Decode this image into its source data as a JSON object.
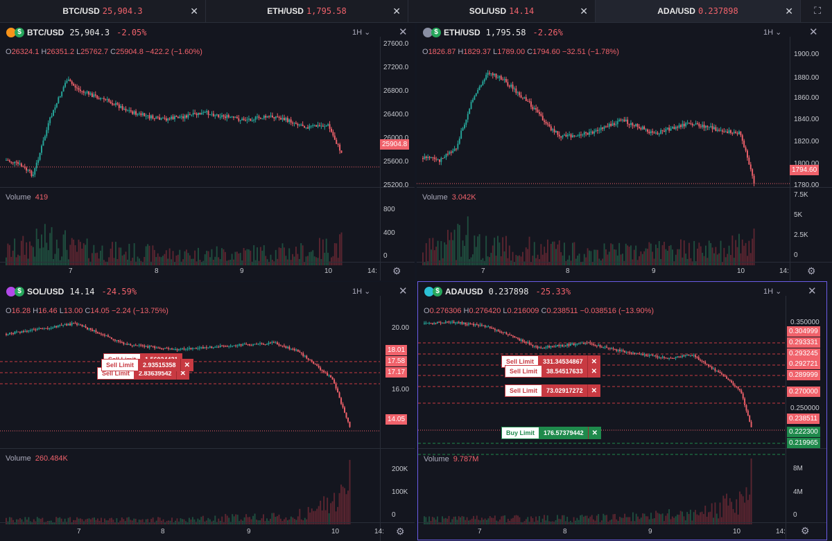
{
  "tabs": [
    {
      "symbol": "BTC/USD",
      "price": "25,904.3"
    },
    {
      "symbol": "ETH/USD",
      "price": "1,795.58"
    },
    {
      "symbol": "SOL/USD",
      "price": "14.14"
    },
    {
      "symbol": "ADA/USD",
      "price": "0.237898"
    }
  ],
  "colors": {
    "up": "#26a69a",
    "down": "#f0626b",
    "bg": "#131722",
    "selected_border": "#6c5ce7"
  },
  "panels": [
    {
      "symbol": "BTC/USD",
      "price": "25,904.3",
      "change": "-2.05%",
      "timeframe": "1H",
      "ohlc": {
        "o": "26324.1",
        "h": "26351.2",
        "l": "25762.7",
        "c": "25904.8",
        "chg": "−422.2 (−1.60%)"
      },
      "price_axis": [
        "27600.0",
        "27200.0",
        "26800.0",
        "26400.0",
        "26000.0",
        "25600.0",
        "25200.0"
      ],
      "last_price": "25904.8",
      "volume_label": "Volume",
      "volume_value": "419",
      "volume_axis": [
        "800",
        "400",
        "0"
      ],
      "time_axis": [
        "7",
        "8",
        "9",
        "10",
        "14:"
      ],
      "orders": []
    },
    {
      "symbol": "ETH/USD",
      "price": "1,795.58",
      "change": "-2.26%",
      "timeframe": "1H",
      "ohlc": {
        "o": "1826.87",
        "h": "1829.37",
        "l": "1789.00",
        "c": "1794.60",
        "chg": "−32.51 (−1.78%)"
      },
      "price_axis": [
        "1900.00",
        "1880.00",
        "1860.00",
        "1840.00",
        "1820.00",
        "1800.00",
        "1780.00"
      ],
      "last_price": "1794.60",
      "volume_label": "Volume",
      "volume_value": "3.042K",
      "volume_axis": [
        "7.5K",
        "5K",
        "2.5K",
        "0"
      ],
      "time_axis": [
        "7",
        "8",
        "9",
        "10",
        "14:"
      ],
      "orders": []
    },
    {
      "symbol": "SOL/USD",
      "price": "14.14",
      "change": "-24.59%",
      "timeframe": "1H",
      "ohlc": {
        "o": "16.28",
        "h": "16.46",
        "l": "13.00",
        "c": "14.05",
        "chg": "−2.24 (−13.75%)"
      },
      "price_axis": [
        "20.00",
        "16.00"
      ],
      "price_tags": [
        "18.01",
        "17.58",
        "17.17"
      ],
      "last_price": "14.05",
      "volume_label": "Volume",
      "volume_value": "260.484K",
      "volume_axis": [
        "200K",
        "100K",
        "0"
      ],
      "time_axis": [
        "7",
        "8",
        "9",
        "10",
        "14:"
      ],
      "orders": [
        {
          "type": "Sell Limit",
          "qty": "1.56024431"
        },
        {
          "type": "Sell Limit",
          "qty": "2.93515358"
        },
        {
          "type": "Sell Limit",
          "qty": "2.83639542"
        }
      ]
    },
    {
      "symbol": "ADA/USD",
      "price": "0.237898",
      "change": "-25.33%",
      "timeframe": "1H",
      "ohlc": {
        "o": "0.276306",
        "h": "0.276420",
        "l": "0.216009",
        "c": "0.238511",
        "chg": "−0.038516 (−13.90%)"
      },
      "price_axis": [
        "0.350000",
        "0.250000"
      ],
      "price_tags": [
        "0.304999",
        "0.293331",
        "0.293245",
        "0.292721",
        "0.289999",
        "0.270000"
      ],
      "buy_tags": [
        "0.222300",
        "0.219965"
      ],
      "last_price": "0.238511",
      "volume_label": "Volume",
      "volume_value": "9.787M",
      "volume_axis": [
        "8M",
        "4M",
        "0"
      ],
      "time_axis": [
        "7",
        "8",
        "9",
        "10",
        "14:"
      ],
      "orders": [
        {
          "type": "Sell Limit",
          "qty": "331.34534867"
        },
        {
          "type": "Sell Limit",
          "qty": "38.54517633"
        },
        {
          "type": "Sell Limit",
          "qty": "73.02917272"
        },
        {
          "type": "Buy Limit",
          "qty": "176.57379442"
        }
      ]
    }
  ]
}
